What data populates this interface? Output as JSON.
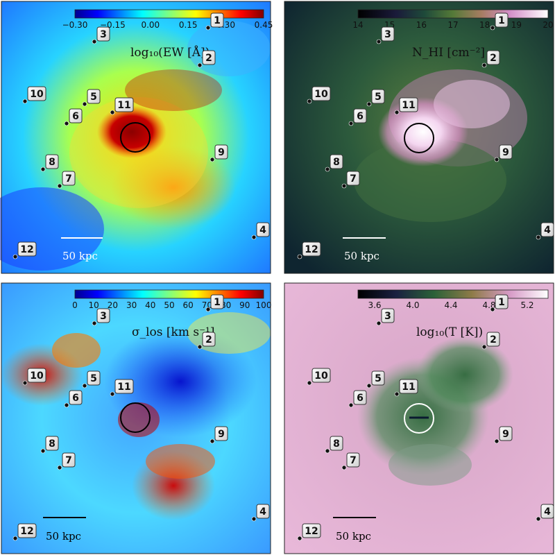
{
  "panels": [
    {
      "id": "ew",
      "title": "log₁₀(EW [Å])",
      "colormap": "jet",
      "colorbar_ticks": [
        "−0.30",
        "−0.15",
        "0.00",
        "0.15",
        "0.30",
        "0.45"
      ],
      "scale_label": "50 kpc",
      "scale_color": "#ffffff",
      "circle_color": "#000000"
    },
    {
      "id": "nhi",
      "title": "N_HI [cm⁻²]",
      "colormap": "cubehelix",
      "colorbar_ticks": [
        "14",
        "15",
        "16",
        "17",
        "18",
        "19",
        "20"
      ],
      "scale_label": "50 kpc",
      "scale_color": "#ffffff",
      "circle_color": "#000000"
    },
    {
      "id": "sigma",
      "title": "σ_los [km s⁻¹]",
      "colormap": "jet",
      "colorbar_ticks": [
        "0",
        "10",
        "20",
        "30",
        "40",
        "50",
        "60",
        "70",
        "80",
        "90",
        "100"
      ],
      "scale_label": "50 kpc",
      "scale_color": "#000000",
      "circle_color": "#000000"
    },
    {
      "id": "temp",
      "title": "log₁₀(T [K])",
      "colormap": "cubehelix",
      "colorbar_ticks": [
        "3.6",
        "4.0",
        "4.4",
        "4.8",
        "5.2"
      ],
      "scale_label": "50 kpc",
      "scale_color": "#000000",
      "circle_color": "#ffffff"
    }
  ],
  "markers": [
    "1",
    "2",
    "3",
    "4",
    "5",
    "6",
    "7",
    "8",
    "9",
    "10",
    "11",
    "12"
  ]
}
